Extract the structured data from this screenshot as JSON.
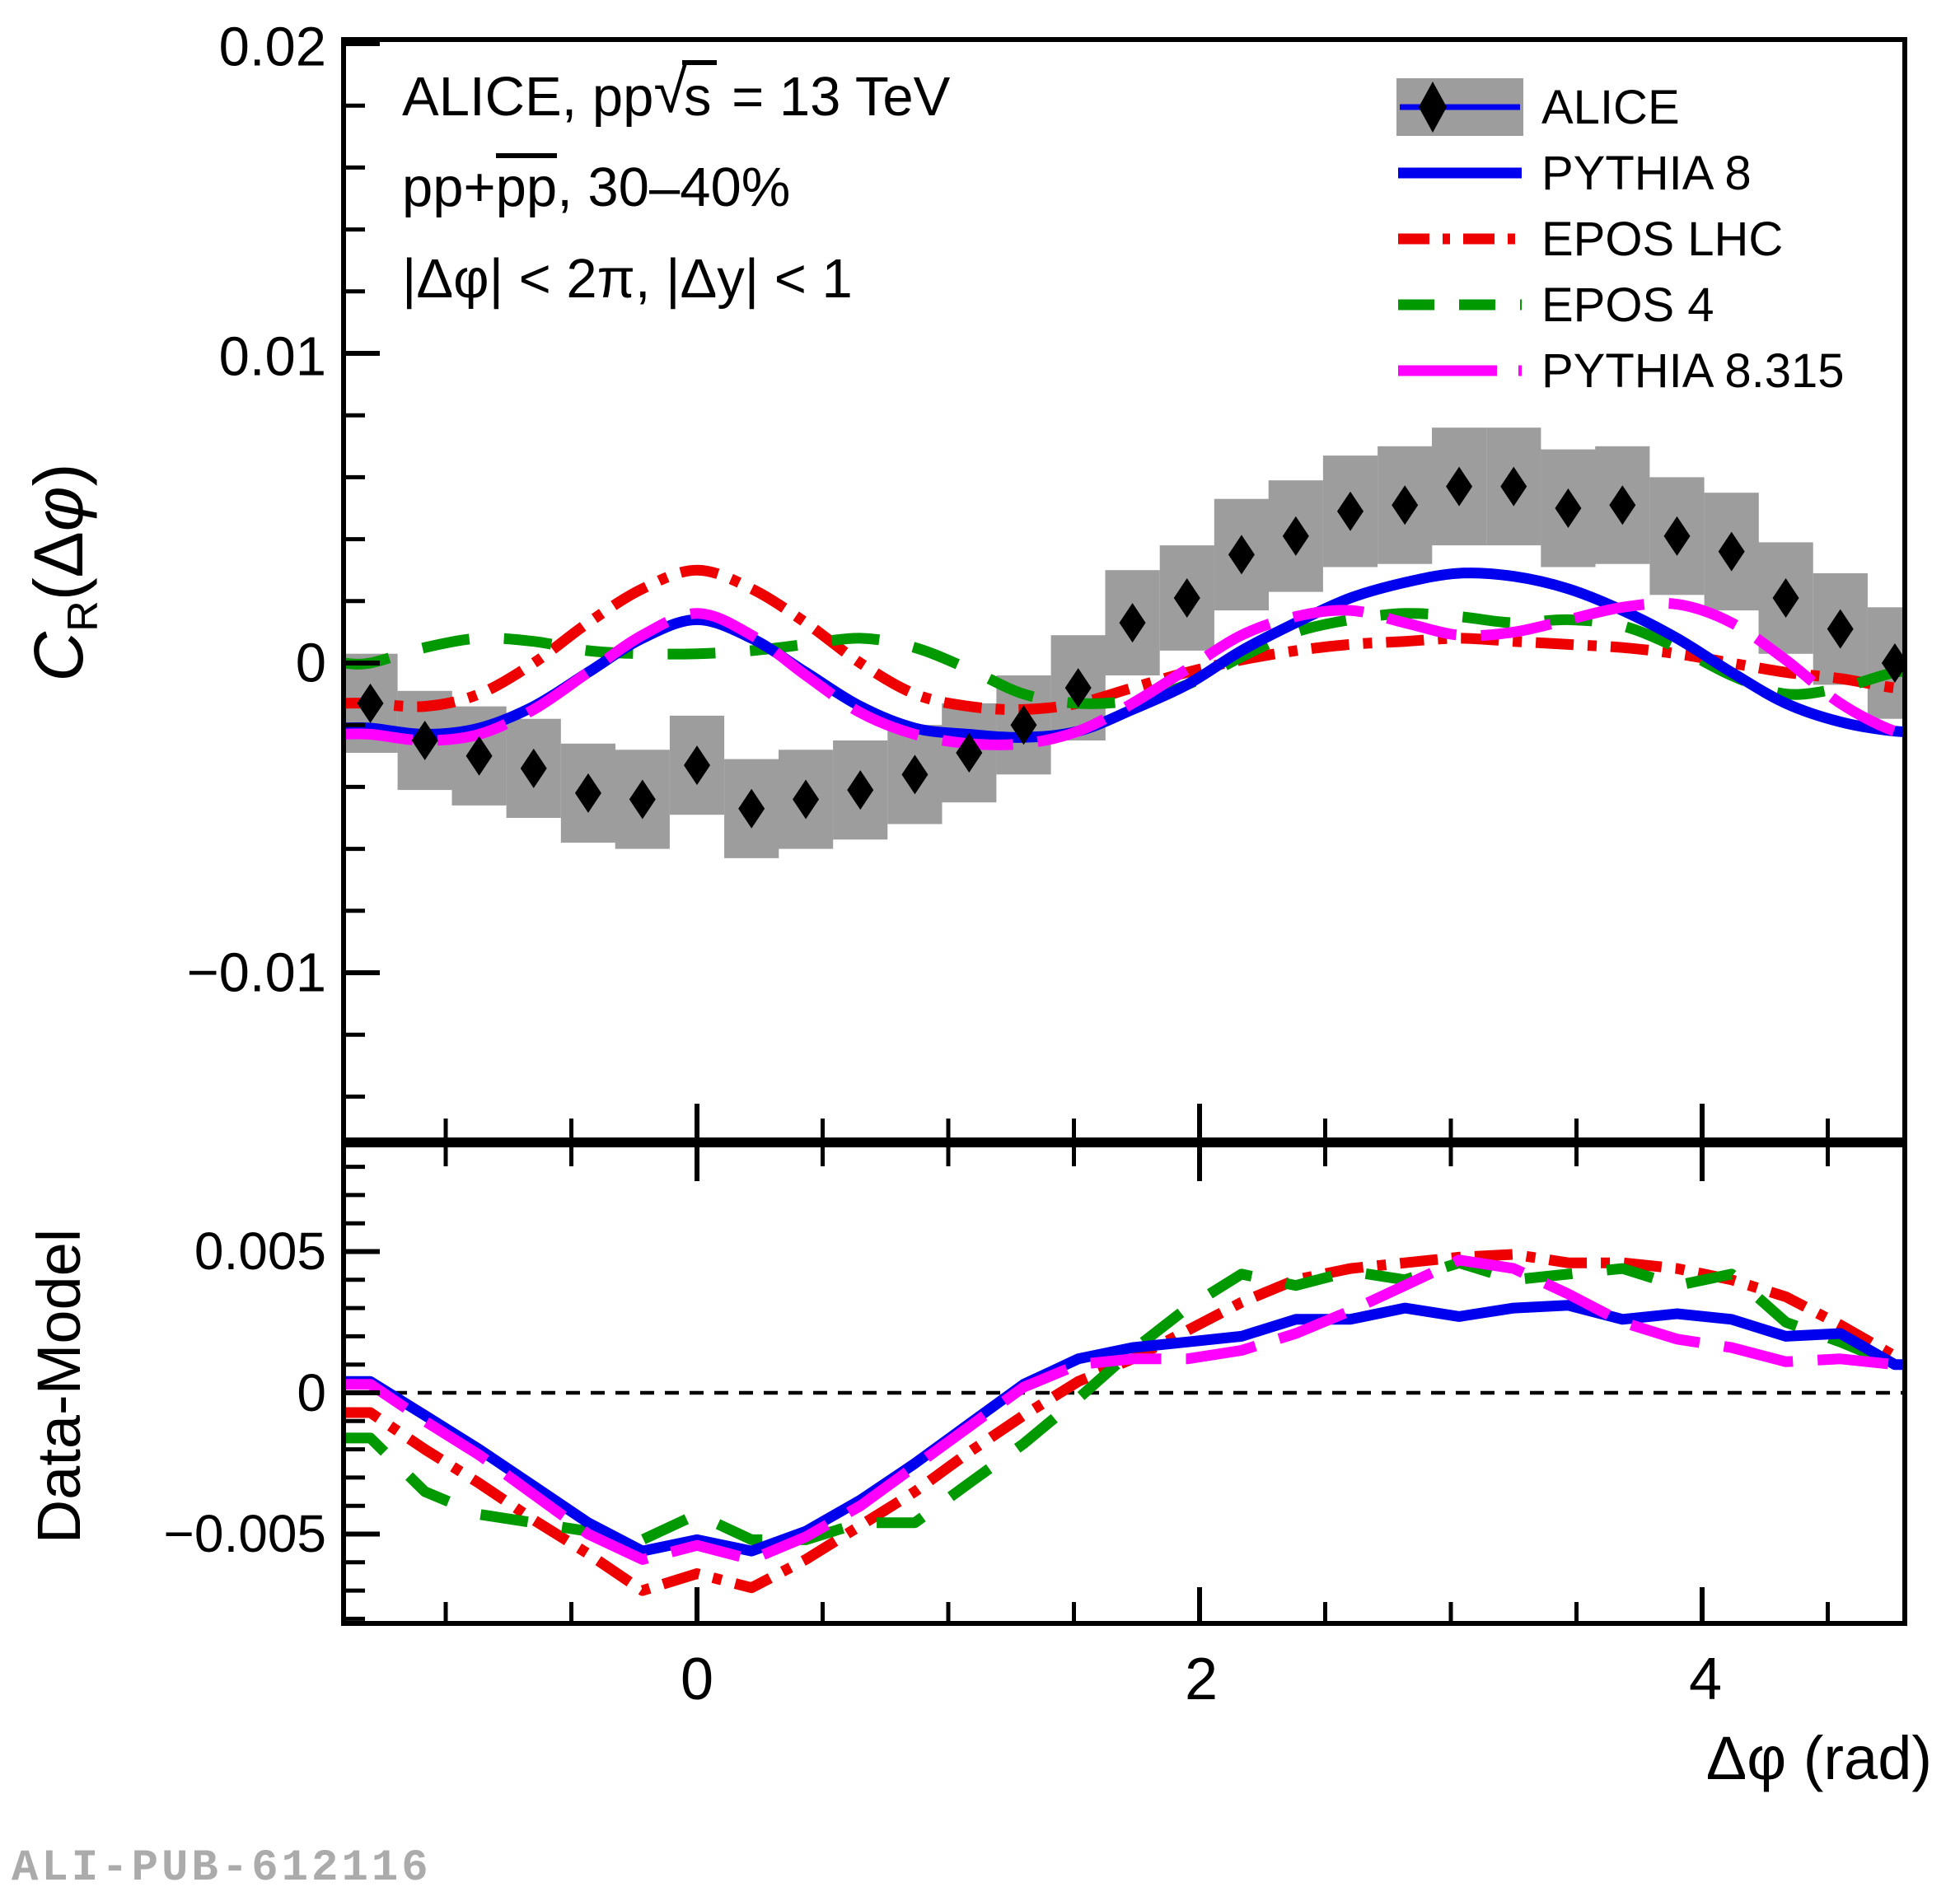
{
  "figure_titles": {
    "line1_pre": "ALICE, pp",
    "line1_sqrt": "√",
    "line1_s": "s",
    "line1_post": " = 13 TeV",
    "line2_pre": "pp+",
    "line2_bar": "pp",
    "line2_post": ", 30–40%",
    "line3": "|Δφ| < 2π, |Δy| < 1"
  },
  "legend": {
    "position": "top-right",
    "entries": [
      {
        "label": "ALICE",
        "type": "band-marker",
        "color": "#9d9d9d",
        "marker_color": "#000000",
        "line_color": "#0000ee",
        "dash": ""
      },
      {
        "label": "PYTHIA 8",
        "type": "line",
        "color": "#0000ee",
        "dash": ""
      },
      {
        "label": "EPOS LHC",
        "type": "line",
        "color": "#ee0000",
        "dash": "38 16 9 16"
      },
      {
        "label": "EPOS 4",
        "type": "line",
        "color": "#009900",
        "dash": "44 30"
      },
      {
        "label": "PYTHIA 8.315",
        "type": "line",
        "color": "#ff00ff",
        "dash": "120 26"
      }
    ]
  },
  "axes": {
    "top": {
      "ylabel_c": "C",
      "ylabel_sub": "R",
      "ylabel_open": "(Δ",
      "ylabel_phi": "φ",
      "ylabel_close": ")",
      "ytick_labels": [
        "0.02",
        "0.01",
        "0",
        "−0.01"
      ],
      "ytick_values": [
        0.02,
        0.01,
        0,
        -0.01
      ],
      "yminor_step": 0.002
    },
    "bottom": {
      "ylabel": "Data-Model",
      "ytick_labels": [
        "0.005",
        "0",
        "−0.005"
      ],
      "ytick_values": [
        0.005,
        0,
        -0.005
      ],
      "yminor_step": 0.001
    },
    "x": {
      "label": "Δφ (rad)",
      "tick_labels": [
        "0",
        "2",
        "4"
      ],
      "tick_values": [
        0,
        2,
        4
      ],
      "minor_ticks": [
        -1,
        -0.5,
        0.5,
        1,
        1.5,
        2.5,
        3,
        3.5,
        4.5
      ]
    }
  },
  "watermark": "ALI-PUB-612116",
  "chart_data": [
    {
      "type": "scatter",
      "panel": "top",
      "title": "ALICE, pp sqrt(s) = 13 TeV, pp+pbarpbar, 30-40%, |dphi| < 2pi, |dy| < 1",
      "ylabel": "C_R(dphi)",
      "xlim": [
        -1.41,
        4.81
      ],
      "ylim": [
        -0.0154,
        0.0201
      ],
      "grid": false,
      "x": [
        -1.3,
        -1.083,
        -0.867,
        -0.65,
        -0.433,
        -0.217,
        0,
        0.217,
        0.433,
        0.65,
        0.867,
        1.083,
        1.3,
        1.517,
        1.733,
        1.95,
        2.167,
        2.383,
        2.6,
        2.817,
        3.033,
        3.25,
        3.467,
        3.683,
        3.9,
        4.117,
        4.333,
        4.55,
        4.767
      ],
      "alice_values": [
        -0.0013,
        -0.0025,
        -0.003,
        -0.0034,
        -0.0042,
        -0.0044,
        -0.0033,
        -0.0047,
        -0.0044,
        -0.0041,
        -0.0036,
        -0.0029,
        -0.002,
        -0.0008,
        0.0013,
        0.0021,
        0.0035,
        0.0041,
        0.0049,
        0.0051,
        0.0057,
        0.0057,
        0.005,
        0.0051,
        0.0041,
        0.0036,
        0.0021,
        0.0011,
        0.0
      ],
      "alice_syst": [
        0.0016,
        0.0016,
        0.0016,
        0.0016,
        0.0016,
        0.0016,
        0.0016,
        0.0016,
        0.0016,
        0.0016,
        0.0016,
        0.0016,
        0.0016,
        0.0017,
        0.0017,
        0.0017,
        0.0018,
        0.0018,
        0.0018,
        0.0019,
        0.0019,
        0.0019,
        0.0019,
        0.0019,
        0.0019,
        0.0019,
        0.0018,
        0.0018,
        0.0018
      ],
      "series": [
        {
          "name": "EPOS LHC",
          "smooth": true,
          "values": [
            -0.0013,
            -0.0014,
            -0.001,
            0.0,
            0.0013,
            0.0024,
            0.003,
            0.0024,
            0.0013,
            0.0,
            -0.001,
            -0.0014,
            -0.0015,
            -0.0013,
            -0.0008,
            -0.0003,
            0.0001,
            0.0004,
            0.0006,
            0.0007,
            0.0008,
            0.0007,
            0.0006,
            0.0005,
            0.0003,
            0.0,
            -0.0003,
            -0.0005,
            -0.0008
          ]
        },
        {
          "name": "EPOS 4",
          "smooth": true,
          "values": [
            0.0,
            0.0005,
            0.0008,
            0.0007,
            0.0004,
            0.0003,
            0.0003,
            0.0004,
            0.0006,
            0.0008,
            0.0005,
            -0.0002,
            -0.001,
            -0.0013,
            -0.0012,
            -0.0007,
            0.0002,
            0.001,
            0.0014,
            0.0016,
            0.0015,
            0.0013,
            0.0014,
            0.0012,
            0.0005,
            -0.0004,
            -0.001,
            -0.0008,
            -0.0003
          ]
        },
        {
          "name": "PYTHIA 8",
          "smooth": true,
          "values": [
            -0.0021,
            -0.0023,
            -0.0021,
            -0.0014,
            -0.0003,
            0.0008,
            0.0014,
            0.0008,
            -0.0003,
            -0.0014,
            -0.0021,
            -0.0023,
            -0.0024,
            -0.0022,
            -0.0015,
            -0.0007,
            0.0004,
            0.0013,
            0.0021,
            0.0026,
            0.0029,
            0.0028,
            0.0024,
            0.0017,
            0.0008,
            -0.0003,
            -0.0013,
            -0.0019,
            -0.0022
          ]
        },
        {
          "name": "PYTHIA 8.315",
          "smooth": true,
          "values": [
            -0.0023,
            -0.0025,
            -0.0023,
            -0.0015,
            -0.0003,
            0.0009,
            0.0016,
            0.0009,
            -0.0004,
            -0.0016,
            -0.0023,
            -0.0026,
            -0.0026,
            -0.0022,
            -0.0013,
            -0.0002,
            0.0009,
            0.0015,
            0.0017,
            0.0013,
            0.0009,
            0.001,
            0.0014,
            0.0018,
            0.0019,
            0.0013,
            0.0001,
            -0.0013,
            -0.0022
          ]
        }
      ]
    },
    {
      "type": "line",
      "panel": "bottom",
      "ylabel": "Data-Model",
      "xlabel": "Δφ (rad)",
      "xlim": [
        -1.41,
        4.81
      ],
      "ylim": [
        -0.00817,
        0.00878
      ],
      "grid": false,
      "zero_line": true,
      "x": [
        -1.3,
        -1.083,
        -0.867,
        -0.65,
        -0.433,
        -0.217,
        0,
        0.217,
        0.433,
        0.65,
        0.867,
        1.083,
        1.3,
        1.517,
        1.733,
        1.95,
        2.167,
        2.383,
        2.6,
        2.817,
        3.033,
        3.25,
        3.467,
        3.683,
        3.9,
        4.117,
        4.333,
        4.55,
        4.767
      ],
      "series": [
        {
          "name": "EPOS LHC",
          "values": [
            -0.0007,
            -0.002,
            -0.0032,
            -0.0045,
            -0.0057,
            -0.007,
            -0.0064,
            -0.0069,
            -0.0059,
            -0.0047,
            -0.0035,
            -0.0021,
            -0.0008,
            0.0004,
            0.0012,
            0.0022,
            0.0032,
            0.004,
            0.0044,
            0.0046,
            0.0048,
            0.0049,
            0.0046,
            0.0046,
            0.0044,
            0.004,
            0.0034,
            0.0024,
            0.0013
          ]
        },
        {
          "name": "EPOS 4",
          "values": [
            -0.0016,
            -0.0035,
            -0.0043,
            -0.0046,
            -0.0049,
            -0.0052,
            -0.0043,
            -0.0052,
            -0.0052,
            -0.0046,
            -0.0046,
            -0.0032,
            -0.0018,
            -0.0002,
            0.0015,
            0.003,
            0.0042,
            0.0038,
            0.0043,
            0.004,
            0.0046,
            0.004,
            0.0042,
            0.0044,
            0.0038,
            0.0042,
            0.0025,
            0.0018,
            0.001
          ]
        },
        {
          "name": "PYTHIA 8",
          "values": [
            0.0004,
            -0.0008,
            -0.002,
            -0.0033,
            -0.0046,
            -0.0056,
            -0.0052,
            -0.0056,
            -0.0049,
            -0.0038,
            -0.0025,
            -0.0011,
            0.0003,
            0.0012,
            0.0016,
            0.0018,
            0.002,
            0.0026,
            0.0026,
            0.003,
            0.0027,
            0.003,
            0.0031,
            0.0026,
            0.0028,
            0.0026,
            0.002,
            0.0021,
            0.001
          ]
        },
        {
          "name": "PYTHIA 8.315",
          "values": [
            0.0003,
            -0.001,
            -0.0022,
            -0.0036,
            -0.005,
            -0.0059,
            -0.0054,
            -0.0059,
            -0.0051,
            -0.004,
            -0.0026,
            -0.0012,
            0.0002,
            0.001,
            0.0012,
            0.0012,
            0.0015,
            0.0021,
            0.0029,
            0.0038,
            0.0047,
            0.0044,
            0.0035,
            0.0025,
            0.0019,
            0.0016,
            0.0011,
            0.0012,
            0.001
          ]
        }
      ]
    }
  ],
  "style": {
    "band_color": "#9d9d9d",
    "marker_color": "#000000",
    "frame_color": "#000000",
    "series_colors": {
      "PYTHIA 8": "#0000ee",
      "EPOS LHC": "#ee0000",
      "EPOS 4": "#009900",
      "PYTHIA 8.315": "#ff00ff"
    },
    "series_dashes": {
      "PYTHIA 8": "",
      "EPOS LHC": "46 17 11 17",
      "EPOS 4": "58 42",
      "PYTHIA 8.315": "86 30"
    }
  }
}
